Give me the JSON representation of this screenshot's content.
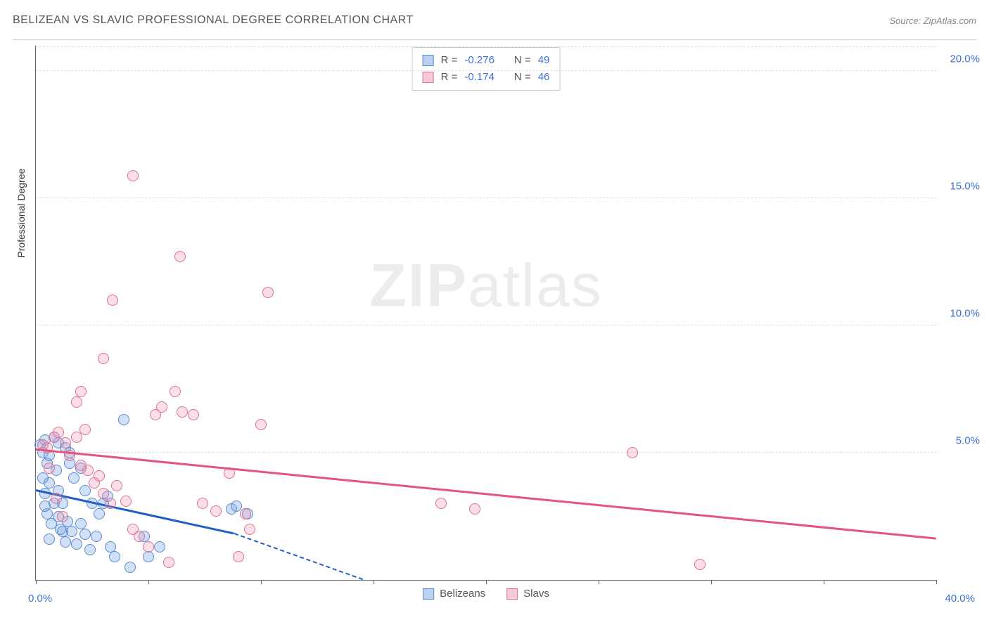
{
  "header": {
    "title": "BELIZEAN VS SLAVIC PROFESSIONAL DEGREE CORRELATION CHART",
    "source_label": "Source: ZipAtlas.com"
  },
  "chart": {
    "type": "scatter",
    "y_axis_title": "Professional Degree",
    "xlim": [
      0,
      40
    ],
    "ylim": [
      0,
      21
    ],
    "x_ticks": [
      0,
      5,
      10,
      15,
      20,
      25,
      30,
      35,
      40
    ],
    "x_tick_labels": {
      "0": "0.0%",
      "40": "40.0%"
    },
    "y_gridlines": [
      5,
      10,
      15,
      20
    ],
    "y_tick_labels": {
      "5": "5.0%",
      "10": "10.0%",
      "15": "15.0%",
      "20": "20.0%"
    },
    "grid_color": "#dddddd",
    "axis_color": "#666666",
    "background_color": "#ffffff",
    "label_color": "#3b6fd6",
    "watermark": {
      "bold": "ZIP",
      "light": "atlas"
    },
    "series": [
      {
        "name": "Belizeans",
        "color_fill": "rgba(120,165,230,0.35)",
        "color_stroke": "#5a8ad0",
        "trend_color": "#1f5fc4",
        "trend": {
          "x1": 0,
          "y1": 3.5,
          "x2": 8.8,
          "y2": 1.8,
          "dash_to_x": 14.5,
          "dash_to_y": 0
        },
        "R": "-0.276",
        "N": "49",
        "points": [
          [
            0.2,
            5.3
          ],
          [
            0.3,
            5.0
          ],
          [
            0.4,
            5.5
          ],
          [
            0.3,
            4.0
          ],
          [
            0.5,
            4.6
          ],
          [
            0.4,
            3.4
          ],
          [
            0.6,
            3.8
          ],
          [
            0.8,
            3.0
          ],
          [
            0.5,
            2.6
          ],
          [
            0.7,
            2.2
          ],
          [
            1.0,
            2.5
          ],
          [
            1.2,
            1.9
          ],
          [
            1.4,
            2.3
          ],
          [
            1.3,
            1.5
          ],
          [
            1.6,
            1.9
          ],
          [
            1.8,
            1.4
          ],
          [
            2.0,
            2.2
          ],
          [
            2.2,
            1.8
          ],
          [
            2.4,
            1.2
          ],
          [
            2.7,
            1.7
          ],
          [
            3.0,
            3.0
          ],
          [
            3.2,
            3.3
          ],
          [
            3.3,
            1.3
          ],
          [
            3.5,
            0.9
          ],
          [
            1.0,
            5.4
          ],
          [
            1.3,
            5.2
          ],
          [
            1.5,
            4.6
          ],
          [
            1.7,
            4.0
          ],
          [
            2.0,
            4.4
          ],
          [
            2.2,
            3.5
          ],
          [
            2.5,
            3.0
          ],
          [
            2.8,
            2.6
          ],
          [
            1.0,
            3.5
          ],
          [
            1.2,
            3.0
          ],
          [
            0.8,
            5.6
          ],
          [
            0.9,
            4.3
          ],
          [
            1.1,
            2.0
          ],
          [
            0.6,
            4.9
          ],
          [
            5.5,
            1.3
          ],
          [
            4.8,
            1.7
          ],
          [
            5.0,
            0.9
          ],
          [
            3.9,
            6.3
          ],
          [
            4.2,
            0.5
          ],
          [
            8.7,
            2.8
          ],
          [
            8.9,
            2.9
          ],
          [
            9.4,
            2.6
          ],
          [
            0.4,
            2.9
          ],
          [
            0.6,
            1.6
          ],
          [
            1.5,
            5.0
          ]
        ]
      },
      {
        "name": "Slavs",
        "color_fill": "rgba(240,150,180,0.3)",
        "color_stroke": "#e07090",
        "trend_color": "#e3557f",
        "trend": {
          "x1": 0,
          "y1": 5.1,
          "x2": 40,
          "y2": 1.6
        },
        "R": "-0.174",
        "N": "46",
        "points": [
          [
            0.3,
            5.3
          ],
          [
            0.5,
            5.2
          ],
          [
            0.8,
            5.6
          ],
          [
            1.0,
            5.8
          ],
          [
            1.3,
            5.4
          ],
          [
            1.5,
            4.9
          ],
          [
            1.8,
            5.6
          ],
          [
            2.0,
            4.5
          ],
          [
            2.3,
            4.3
          ],
          [
            2.6,
            3.8
          ],
          [
            2.8,
            4.1
          ],
          [
            3.0,
            3.4
          ],
          [
            3.3,
            3.0
          ],
          [
            3.6,
            3.7
          ],
          [
            4.0,
            3.1
          ],
          [
            4.3,
            2.0
          ],
          [
            4.6,
            1.7
          ],
          [
            5.0,
            1.3
          ],
          [
            5.3,
            6.5
          ],
          [
            5.6,
            6.8
          ],
          [
            5.9,
            0.7
          ],
          [
            6.2,
            7.4
          ],
          [
            6.5,
            6.6
          ],
          [
            7.0,
            6.5
          ],
          [
            7.4,
            3.0
          ],
          [
            8.0,
            2.7
          ],
          [
            8.6,
            4.2
          ],
          [
            9.0,
            0.9
          ],
          [
            9.5,
            2.0
          ],
          [
            10.0,
            6.1
          ],
          [
            10.3,
            11.3
          ],
          [
            9.3,
            2.6
          ],
          [
            3.4,
            11.0
          ],
          [
            3.0,
            8.7
          ],
          [
            6.4,
            12.7
          ],
          [
            4.3,
            15.9
          ],
          [
            2.0,
            7.4
          ],
          [
            0.6,
            4.4
          ],
          [
            0.9,
            3.2
          ],
          [
            1.2,
            2.5
          ],
          [
            18.0,
            3.0
          ],
          [
            19.5,
            2.8
          ],
          [
            26.5,
            5.0
          ],
          [
            29.5,
            0.6
          ],
          [
            1.8,
            7.0
          ],
          [
            2.2,
            5.9
          ]
        ]
      }
    ],
    "stats_box": {
      "rows": [
        {
          "swatch_fill": "rgba(120,165,230,0.5)",
          "swatch_stroke": "#5a8ad0",
          "R_label": "R =",
          "R": "-0.276",
          "N_label": "N =",
          "N": "49"
        },
        {
          "swatch_fill": "rgba(240,150,180,0.5)",
          "swatch_stroke": "#e07090",
          "R_label": "R =",
          "R": "-0.174",
          "N_label": "N =",
          "N": "46"
        }
      ]
    },
    "bottom_legend": [
      {
        "swatch_fill": "rgba(120,165,230,0.5)",
        "swatch_stroke": "#5a8ad0",
        "label": "Belizeans"
      },
      {
        "swatch_fill": "rgba(240,150,180,0.5)",
        "swatch_stroke": "#e07090",
        "label": "Slavs"
      }
    ]
  }
}
